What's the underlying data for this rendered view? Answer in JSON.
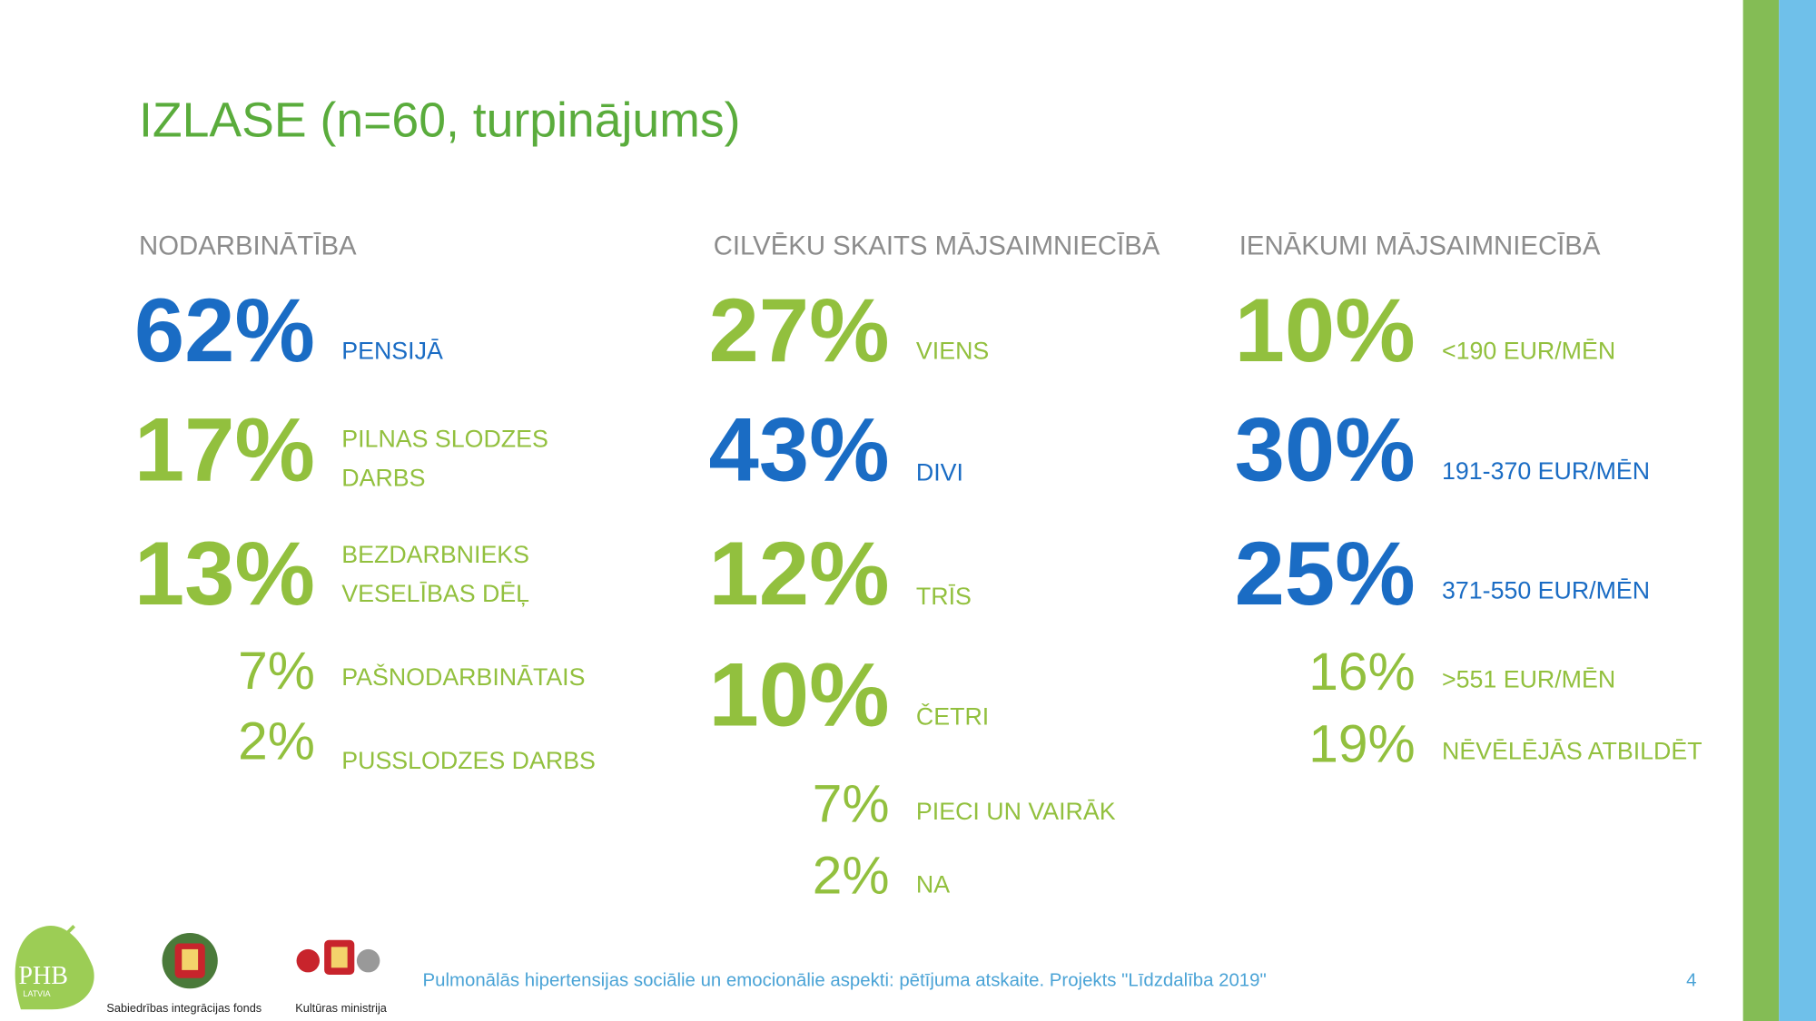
{
  "title": "IZLASE (n=60, turpinājums)",
  "columns": [
    {
      "heading": "NODARBINĀTĪBA",
      "items": [
        {
          "percent": "62%",
          "label": [
            "PENSIJĀ"
          ],
          "size": "large",
          "color": "#1a6cc4"
        },
        {
          "percent": "17%",
          "label": [
            "PILNAS SLODZES",
            "DARBS"
          ],
          "size": "large",
          "color": "#92c03e"
        },
        {
          "percent": "13%",
          "label": [
            "BEZDARBNIEKS",
            "VESELĪBAS DĒĻ"
          ],
          "size": "large",
          "color": "#92c03e"
        },
        {
          "percent": "7%",
          "label": [
            "PAŠNODARBINĀTAIS"
          ],
          "size": "small",
          "color": "#92c03e"
        },
        {
          "percent": "2%",
          "label": [
            "PUSSLODZES DARBS"
          ],
          "size": "small",
          "color": "#92c03e"
        }
      ]
    },
    {
      "heading": "CILVĒKU SKAITS MĀJSAIMNIECĪBĀ",
      "items": [
        {
          "percent": "27%",
          "label": [
            "VIENS"
          ],
          "size": "large",
          "color": "#92c03e"
        },
        {
          "percent": "43%",
          "label": [
            "DIVI"
          ],
          "size": "large",
          "color": "#1a6cc4"
        },
        {
          "percent": "12%",
          "label": [
            "TRĪS"
          ],
          "size": "large",
          "color": "#92c03e"
        },
        {
          "percent": "10%",
          "label": [
            "ČETRI"
          ],
          "size": "large",
          "color": "#92c03e"
        },
        {
          "percent": "7%",
          "label": [
            "PIECI UN VAIRĀK"
          ],
          "size": "small",
          "color": "#92c03e"
        },
        {
          "percent": "2%",
          "label": [
            "NA"
          ],
          "size": "small",
          "color": "#92c03e"
        }
      ]
    },
    {
      "heading": "IENĀKUMI MĀJSAIMNIECĪBĀ",
      "items": [
        {
          "percent": "10%",
          "label": [
            "<190 EUR/MĒN"
          ],
          "size": "large",
          "color": "#92c03e"
        },
        {
          "percent": "30%",
          "label": [
            "191-370 EUR/MĒN"
          ],
          "size": "large",
          "color": "#1a6cc4"
        },
        {
          "percent": "25%",
          "label": [
            "371-550 EUR/MĒN"
          ],
          "size": "large",
          "color": "#1a6cc4"
        },
        {
          "percent": "16%",
          "label": [
            ">551 EUR/MĒN"
          ],
          "size": "small",
          "color": "#92c03e"
        },
        {
          "percent": "19%",
          "label": [
            "NĒVĒLĒJĀS ATBILDĒT"
          ],
          "size": "small",
          "color": "#92c03e"
        }
      ]
    }
  ],
  "footer": {
    "text": "Pulmonālās hipertensijas sociālie un emocionālie aspekti: pētījuma atskaite. Projekts \"Līdzdalība 2019\"",
    "page": "4"
  },
  "logos": {
    "phb": "PHB",
    "phb_sub": "LATVIA",
    "fund": "Sabiedrības integrācijas fonds",
    "ministry": "Kultūras ministrija"
  }
}
